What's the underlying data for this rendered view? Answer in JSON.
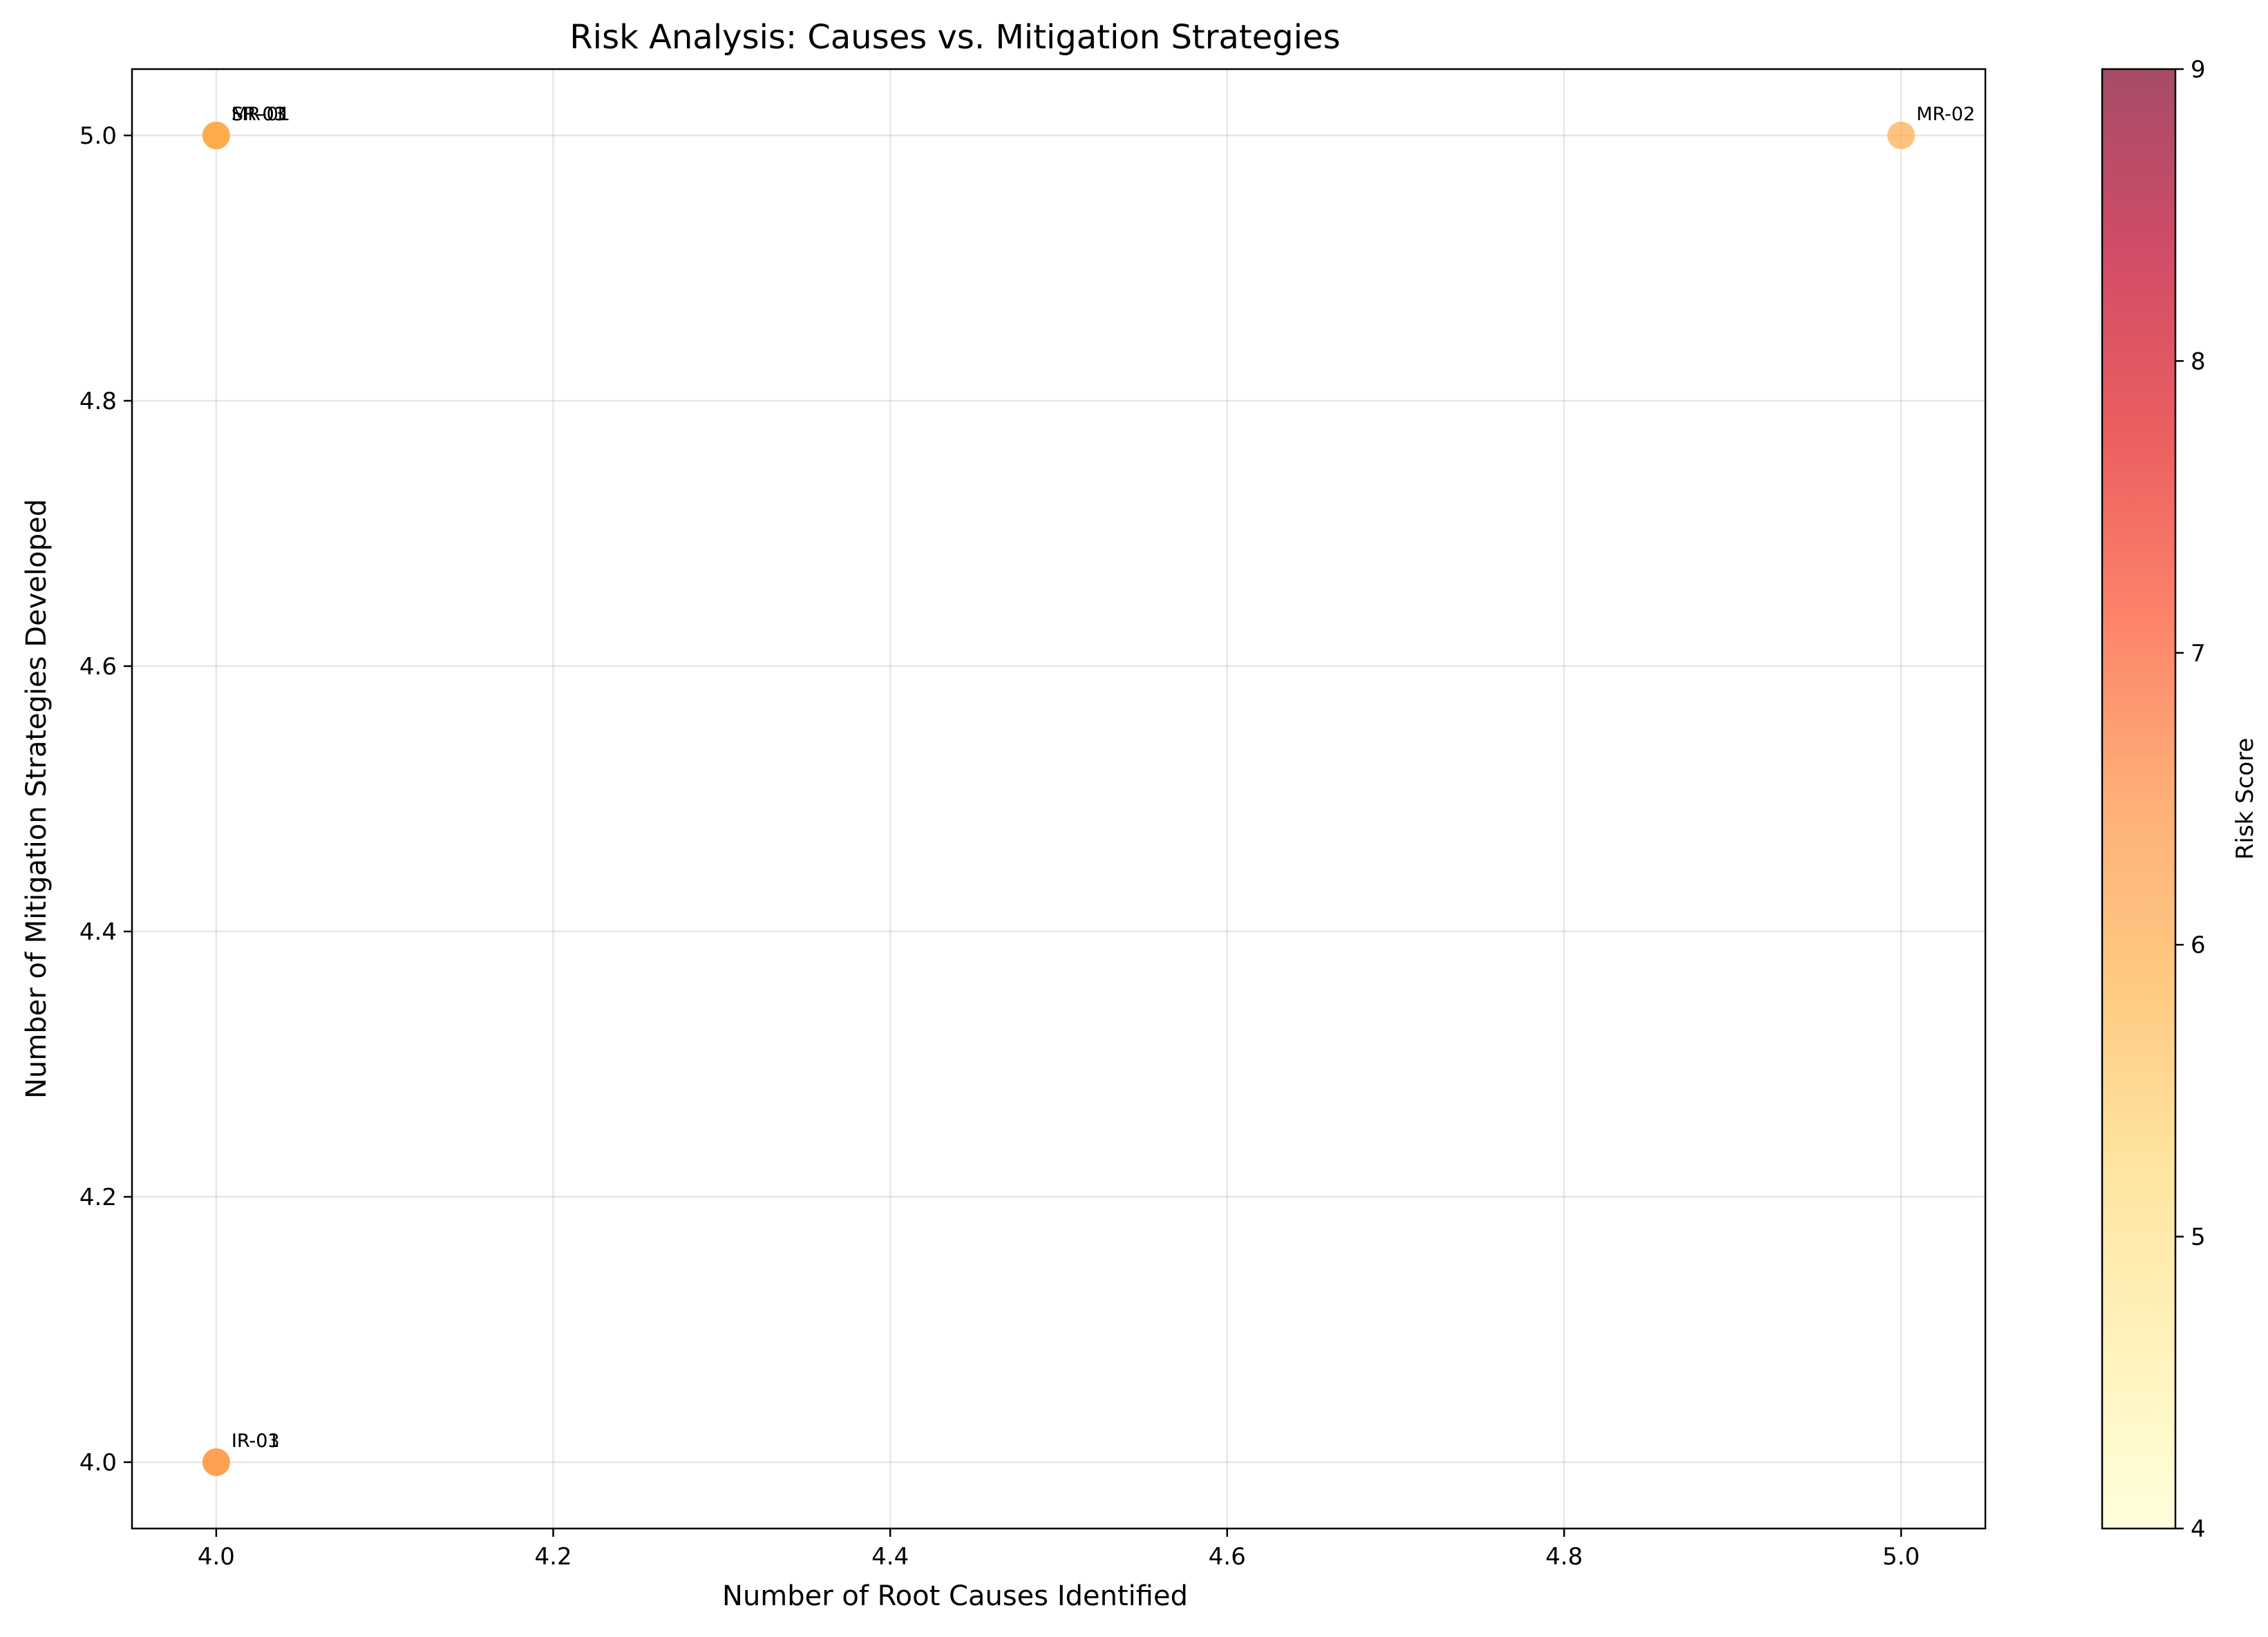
{
  "chart_data": {
    "type": "scatter",
    "title": "Risk Analysis: Causes vs. Mitigation Strategies",
    "xlabel": "Number of Root Causes Identified",
    "ylabel": "Number of Mitigation Strategies Developed",
    "xlim": [
      3.95,
      5.05
    ],
    "ylim": [
      3.95,
      5.05
    ],
    "x_ticks": [
      4.0,
      4.2,
      4.4,
      4.6,
      4.8,
      5.0
    ],
    "y_ticks": [
      4.0,
      4.2,
      4.4,
      4.6,
      4.8,
      5.0
    ],
    "x_tick_labels": [
      "4.0",
      "4.2",
      "4.4",
      "4.6",
      "4.8",
      "5.0"
    ],
    "y_tick_labels": [
      "4.0",
      "4.2",
      "4.4",
      "4.6",
      "4.8",
      "5.0"
    ],
    "grid": true,
    "colormap": "YlOrRd",
    "colormap_stops": [
      "#ffffcc",
      "#ffeda0",
      "#fed976",
      "#feb24c",
      "#fd8d3c",
      "#fc4e2a",
      "#e31a1c",
      "#bd0026",
      "#800026"
    ],
    "point_alpha": 0.7,
    "colorbar": {
      "label": "Risk Score",
      "range": [
        4,
        9
      ],
      "ticks": [
        4,
        5,
        6,
        7,
        8,
        9
      ],
      "tick_labels": [
        "4",
        "5",
        "6",
        "7",
        "8",
        "9"
      ]
    },
    "points": [
      {
        "label": "SR-01",
        "x": 4,
        "y": 5,
        "risk_score": 6
      },
      {
        "label": "MR-01",
        "x": 4,
        "y": 5,
        "risk_score": 6
      },
      {
        "label": "SR-03",
        "x": 4,
        "y": 5,
        "risk_score": 6
      },
      {
        "label": "MR-02",
        "x": 5,
        "y": 5,
        "risk_score": 6
      },
      {
        "label": "IR-01",
        "x": 4,
        "y": 4,
        "risk_score": 6.3
      },
      {
        "label": "IR-03",
        "x": 4,
        "y": 4,
        "risk_score": 6.3
      }
    ]
  }
}
